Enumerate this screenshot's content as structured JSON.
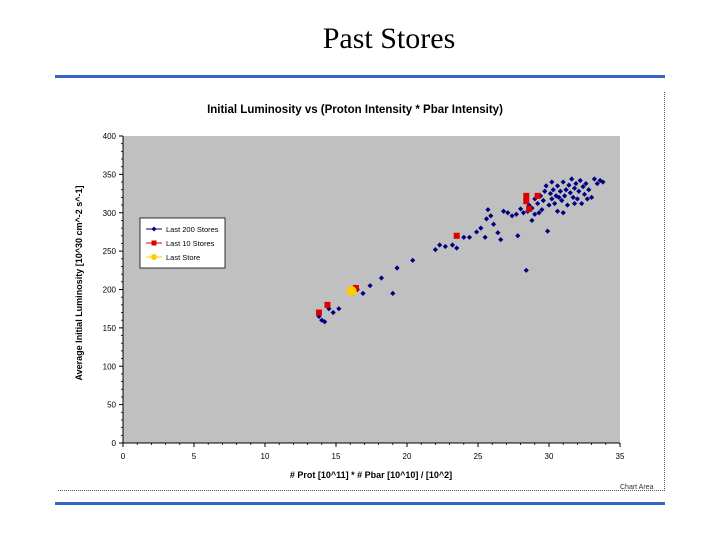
{
  "slide": {
    "title": "Past Stores",
    "rule_color": "#3366cc",
    "chart_area_label": "Chart Area"
  },
  "chart_data": {
    "type": "scatter",
    "title": "Initial Luminosity vs (Proton Intensity * Pbar Intensity)",
    "xlabel": "# Prot [10^11] * # Pbar [10^10] / [10^2]",
    "ylabel": "Average Initial Luminosity [10^30 cm^-2 s^-1]",
    "xlim": [
      0,
      35
    ],
    "ylim": [
      0,
      400
    ],
    "x_ticks": [
      "0",
      "5",
      "10",
      "15",
      "20",
      "25",
      "30",
      "35"
    ],
    "y_ticks": [
      "0",
      "50",
      "100",
      "150",
      "200",
      "250",
      "300",
      "350",
      "400"
    ],
    "grid": false,
    "legend_position": "left",
    "plot_background": "#c0c0c0",
    "series": [
      {
        "name": "Last 200 Stores",
        "marker": "diamond",
        "color": "#000080",
        "points": [
          [
            13.8,
            165
          ],
          [
            14.0,
            160
          ],
          [
            14.2,
            158
          ],
          [
            14.5,
            175
          ],
          [
            14.8,
            170
          ],
          [
            15.2,
            175
          ],
          [
            16.2,
            195
          ],
          [
            16.5,
            200
          ],
          [
            16.9,
            195
          ],
          [
            17.4,
            205
          ],
          [
            18.2,
            215
          ],
          [
            19.0,
            195
          ],
          [
            19.3,
            228
          ],
          [
            20.4,
            238
          ],
          [
            22.0,
            252
          ],
          [
            22.3,
            258
          ],
          [
            22.7,
            256
          ],
          [
            23.2,
            258
          ],
          [
            23.5,
            254
          ],
          [
            24.0,
            268
          ],
          [
            24.4,
            268
          ],
          [
            24.9,
            275
          ],
          [
            25.2,
            280
          ],
          [
            25.5,
            268
          ],
          [
            25.6,
            292
          ],
          [
            25.7,
            304
          ],
          [
            25.9,
            296
          ],
          [
            26.1,
            285
          ],
          [
            26.4,
            274
          ],
          [
            26.8,
            302
          ],
          [
            27.1,
            300
          ],
          [
            27.4,
            296
          ],
          [
            27.7,
            298
          ],
          [
            27.8,
            270
          ],
          [
            28.0,
            305
          ],
          [
            28.2,
            300
          ],
          [
            28.4,
            225
          ],
          [
            28.5,
            302
          ],
          [
            28.6,
            310
          ],
          [
            28.8,
            306
          ],
          [
            29.0,
            318
          ],
          [
            29.2,
            312
          ],
          [
            29.3,
            300
          ],
          [
            29.4,
            322
          ],
          [
            29.5,
            304
          ],
          [
            29.6,
            316
          ],
          [
            29.7,
            328
          ],
          [
            29.8,
            335
          ],
          [
            29.9,
            276
          ],
          [
            30.0,
            310
          ],
          [
            30.1,
            325
          ],
          [
            30.2,
            318
          ],
          [
            30.3,
            330
          ],
          [
            30.4,
            312
          ],
          [
            30.5,
            322
          ],
          [
            30.6,
            335
          ],
          [
            30.7,
            320
          ],
          [
            30.8,
            328
          ],
          [
            30.9,
            316
          ],
          [
            31.0,
            340
          ],
          [
            31.1,
            322
          ],
          [
            31.2,
            330
          ],
          [
            31.3,
            310
          ],
          [
            31.4,
            336
          ],
          [
            31.5,
            326
          ],
          [
            31.6,
            344
          ],
          [
            31.7,
            320
          ],
          [
            31.8,
            332
          ],
          [
            31.9,
            338
          ],
          [
            32.0,
            318
          ],
          [
            32.1,
            328
          ],
          [
            32.2,
            342
          ],
          [
            32.3,
            312
          ],
          [
            32.4,
            334
          ],
          [
            32.5,
            324
          ],
          [
            32.6,
            338
          ],
          [
            32.8,
            330
          ],
          [
            33.0,
            320
          ],
          [
            33.2,
            344
          ],
          [
            33.4,
            338
          ],
          [
            33.6,
            342
          ],
          [
            33.8,
            340
          ],
          [
            30.2,
            340
          ],
          [
            31.0,
            300
          ],
          [
            29.0,
            298
          ],
          [
            28.8,
            290
          ],
          [
            30.6,
            302
          ],
          [
            31.8,
            312
          ],
          [
            32.7,
            318
          ],
          [
            26.6,
            265
          ]
        ]
      },
      {
        "name": "Last 10 Stores",
        "marker": "square",
        "color": "#dd0000",
        "points": [
          [
            13.8,
            170
          ],
          [
            14.4,
            180
          ],
          [
            16.4,
            202
          ],
          [
            23.5,
            270
          ],
          [
            28.4,
            322
          ],
          [
            28.4,
            315
          ],
          [
            29.2,
            322
          ],
          [
            28.6,
            305
          ]
        ]
      },
      {
        "name": "Last Store",
        "marker": "circle",
        "color": "#ffcc00",
        "points": [
          [
            16.1,
            198
          ]
        ]
      }
    ]
  }
}
